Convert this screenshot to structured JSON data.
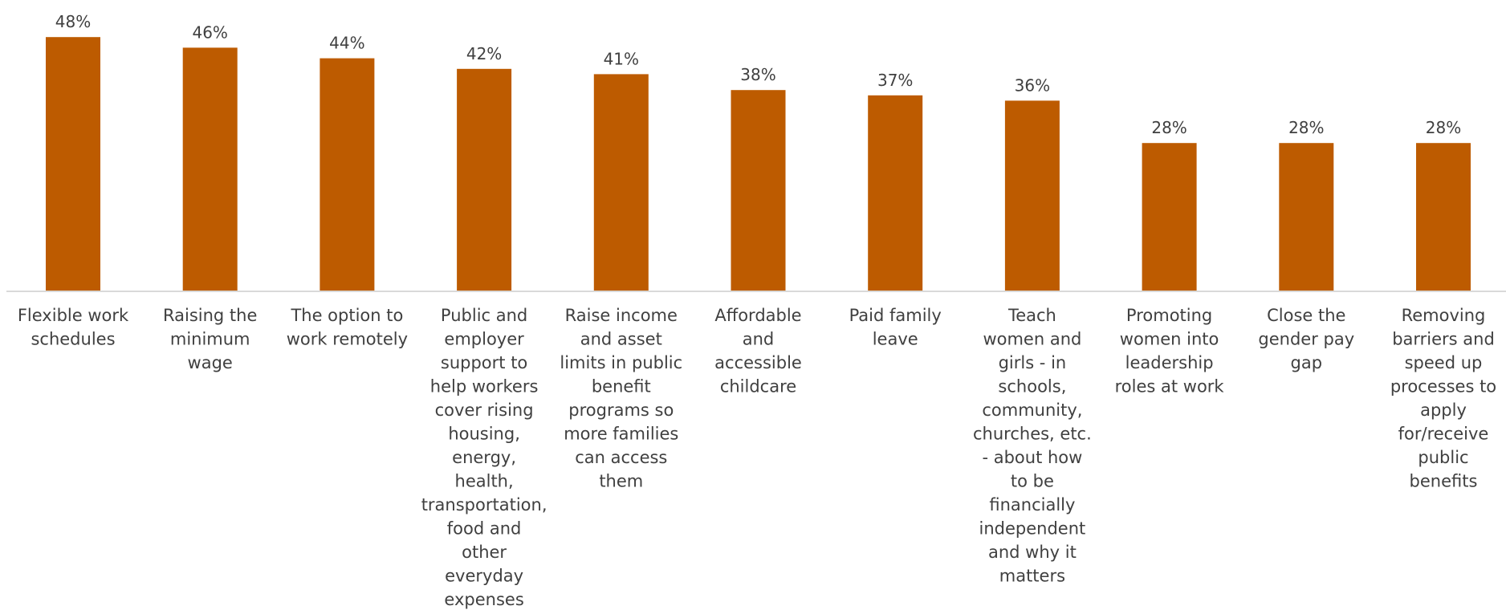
{
  "chart_data": {
    "type": "bar",
    "categories": [
      [
        "Flexible work",
        "schedules"
      ],
      [
        "Raising the",
        "minimum",
        "wage"
      ],
      [
        "The option to",
        "work remotely"
      ],
      [
        "Public and",
        "employer",
        "support to",
        "help workers",
        "cover rising",
        "housing,",
        "energy,",
        "health,",
        "transportation,",
        "food and",
        "other",
        "everyday",
        "expenses"
      ],
      [
        "Raise income",
        "and asset",
        "limits in public",
        "benefit",
        "programs so",
        "more families",
        "can access",
        "them"
      ],
      [
        "Affordable",
        "and",
        "accessible",
        "childcare"
      ],
      [
        "Paid family",
        "leave"
      ],
      [
        "Teach",
        "women and",
        "girls - in",
        "schools,",
        "community,",
        "churches, etc.",
        "- about how",
        "to be",
        "financially",
        "independent",
        "and why it",
        "matters"
      ],
      [
        "Promoting",
        "women into",
        "leadership",
        "roles at work"
      ],
      [
        "Close the",
        "gender pay",
        "gap"
      ],
      [
        "Removing",
        "barriers and",
        "speed up",
        "processes to",
        "apply",
        "for/receive",
        "public",
        "benefits"
      ]
    ],
    "values": [
      48,
      46,
      44,
      42,
      41,
      38,
      37,
      36,
      28,
      28,
      28
    ],
    "data_labels": [
      "48%",
      "46%",
      "44%",
      "42%",
      "41%",
      "38%",
      "37%",
      "36%",
      "28%",
      "28%",
      "28%"
    ],
    "ylim": [
      0,
      50
    ],
    "grid": false,
    "legend": "none",
    "bar_color": "#BD5B00"
  }
}
